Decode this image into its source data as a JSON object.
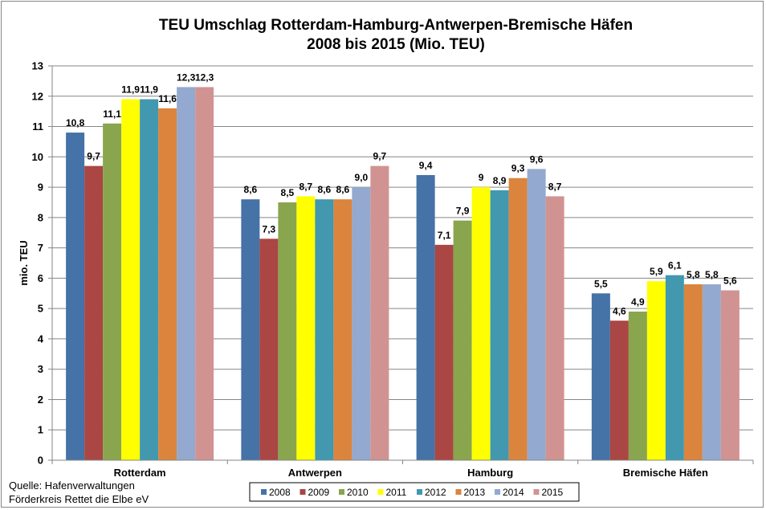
{
  "chart_data": {
    "type": "bar",
    "title": [
      "TEU Umschlag Rotterdam-Hamburg-Antwerpen-Bremische Häfen",
      "2008 bis 2015 (Mio. TEU)"
    ],
    "ylabel": "mio. TEU",
    "xlabel": "",
    "ylim": [
      0,
      13
    ],
    "yticks": [
      0,
      1,
      2,
      3,
      4,
      5,
      6,
      7,
      8,
      9,
      10,
      11,
      12,
      13
    ],
    "grid": true,
    "legend_position": "bottom",
    "categories": [
      "Rotterdam",
      "Antwerpen",
      "Hamburg",
      "Bremische Häfen"
    ],
    "series": [
      {
        "name": "2008",
        "color": "#4572A7",
        "values": [
          10.8,
          8.6,
          9.4,
          5.5
        ],
        "labels": [
          "10,8",
          "8,6",
          "9,4",
          "5,5"
        ]
      },
      {
        "name": "2009",
        "color": "#AA4643",
        "values": [
          9.7,
          7.3,
          7.1,
          4.6
        ],
        "labels": [
          "9,7",
          "7,3",
          "7,1",
          "4,6"
        ]
      },
      {
        "name": "2010",
        "color": "#89A54E",
        "values": [
          11.1,
          8.5,
          7.9,
          4.9
        ],
        "labels": [
          "11,1",
          "8,5",
          "7,9",
          "4,9"
        ]
      },
      {
        "name": "2011",
        "color": "#FFFF00",
        "values": [
          11.9,
          8.7,
          9.0,
          5.9
        ],
        "labels": [
          "11,9",
          "8,7",
          "9",
          "5,9"
        ]
      },
      {
        "name": "2012",
        "color": "#4198AF",
        "values": [
          11.9,
          8.6,
          8.9,
          6.1
        ],
        "labels": [
          "11,9",
          "8,6",
          "8,9",
          "6,1"
        ]
      },
      {
        "name": "2013",
        "color": "#DB843D",
        "values": [
          11.6,
          8.6,
          9.3,
          5.8
        ],
        "labels": [
          "11,6",
          "8,6",
          "9,3",
          "5,8"
        ]
      },
      {
        "name": "2014",
        "color": "#93A9CF",
        "values": [
          12.3,
          9.0,
          9.6,
          5.8
        ],
        "labels": [
          "12,3",
          "9,0",
          "9,6",
          "5,8"
        ]
      },
      {
        "name": "2015",
        "color": "#D19392",
        "values": [
          12.3,
          9.7,
          8.7,
          5.6
        ],
        "labels": [
          "12,3",
          "9,7",
          "8,7",
          "5,6"
        ]
      }
    ]
  },
  "source": {
    "line1": "Quelle: Hafenverwaltungen",
    "line2": "Förderkreis Rettet die Elbe eV"
  }
}
